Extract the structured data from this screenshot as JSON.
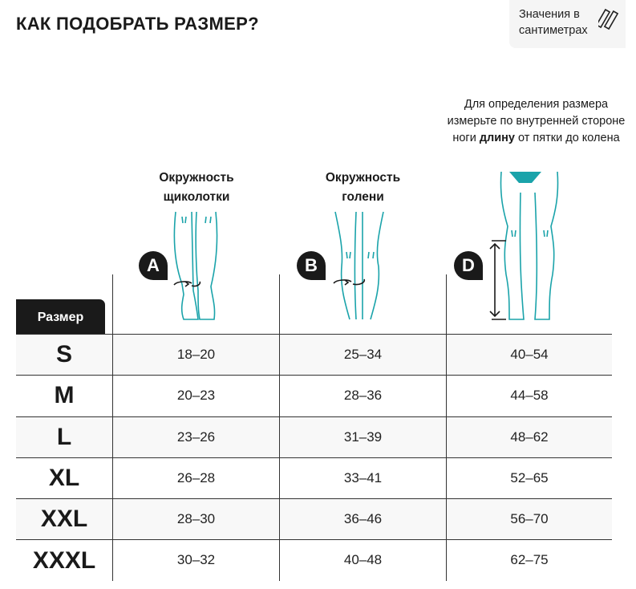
{
  "title": "КАК ПОДОБРАТЬ РАЗМЕР?",
  "units_note": {
    "line1": "Значения в",
    "line2": "сантиметрах",
    "icon": "rulers-icon"
  },
  "columns": [
    {
      "badge": "A",
      "title_line1": "Окружность",
      "title_line2": "щиколотки"
    },
    {
      "badge": "B",
      "title_line1": "Окружность",
      "title_line2": "голени"
    },
    {
      "badge": "D",
      "note_part1": "Для определения размера измерьте по внутренней стороне ноги",
      "note_bold": "длину",
      "note_part2": "от пятки до колена"
    }
  ],
  "size_header": "Размер",
  "accent_color": "#1aa3aa",
  "rows": [
    {
      "size": "S",
      "a": "18–20",
      "b": "25–34",
      "d": "40–54"
    },
    {
      "size": "M",
      "a": "20–23",
      "b": "28–36",
      "d": "44–58"
    },
    {
      "size": "L",
      "a": "23–26",
      "b": "31–39",
      "d": "48–62"
    },
    {
      "size": "XL",
      "a": "26–28",
      "b": "33–41",
      "d": "52–65"
    },
    {
      "size": "XXL",
      "a": "28–30",
      "b": "36–46",
      "d": "56–70"
    },
    {
      "size": "XXXL",
      "a": "30–32",
      "b": "40–48",
      "d": "62–75"
    }
  ]
}
